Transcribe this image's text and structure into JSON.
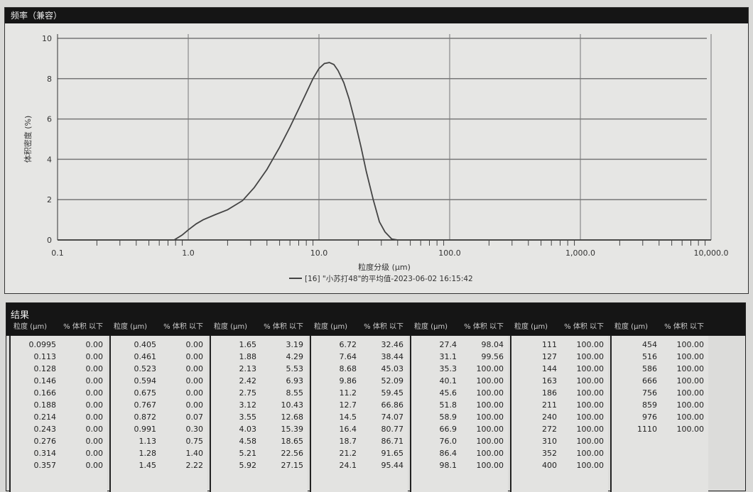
{
  "chart_panel": {
    "title": "频率（兼容）"
  },
  "chart_data": {
    "type": "line",
    "title": "频率（兼容）",
    "xlabel": "粒度分级 (μm)",
    "ylabel": "体积密度 (%)",
    "xscale": "log",
    "xlim": [
      0.1,
      10000
    ],
    "ylim": [
      0,
      10
    ],
    "xticks": [
      "0.1",
      "1.0",
      "10.0",
      "100.0",
      "1,000.0",
      "10,000.0"
    ],
    "yticks": [
      "0",
      "2",
      "4",
      "6",
      "8",
      "10"
    ],
    "grid": true,
    "legend": "bottom",
    "series": [
      {
        "name": "[16] \"小苏打48\"的平均值-2023-06-02 16:15:42",
        "x": [
          0.1,
          0.78,
          0.9,
          1.0,
          1.15,
          1.3,
          1.6,
          2.0,
          2.6,
          3.2,
          4.0,
          5.0,
          6.0,
          7.0,
          8.0,
          9.0,
          10.0,
          11.0,
          12.0,
          13.0,
          14.0,
          15.5,
          17.0,
          19.0,
          21.0,
          23.0,
          26.0,
          29.0,
          32.0,
          36.0,
          40.0,
          10000
        ],
        "y": [
          0,
          0,
          0.25,
          0.5,
          0.8,
          1.0,
          1.25,
          1.5,
          1.95,
          2.6,
          3.5,
          4.6,
          5.6,
          6.5,
          7.3,
          8.0,
          8.5,
          8.75,
          8.8,
          8.7,
          8.4,
          7.8,
          7.0,
          5.8,
          4.6,
          3.4,
          2.0,
          0.9,
          0.4,
          0.05,
          0,
          0
        ]
      }
    ]
  },
  "results": {
    "title": "结果",
    "col_size": "粒度 (μm)",
    "col_pct": "% 体积 以下",
    "groups": [
      [
        [
          "0.0995",
          "0.00"
        ],
        [
          "0.113",
          "0.00"
        ],
        [
          "0.128",
          "0.00"
        ],
        [
          "0.146",
          "0.00"
        ],
        [
          "0.166",
          "0.00"
        ],
        [
          "0.188",
          "0.00"
        ],
        [
          "0.214",
          "0.00"
        ],
        [
          "0.243",
          "0.00"
        ],
        [
          "0.276",
          "0.00"
        ],
        [
          "0.314",
          "0.00"
        ],
        [
          "0.357",
          "0.00"
        ]
      ],
      [
        [
          "0.405",
          "0.00"
        ],
        [
          "0.461",
          "0.00"
        ],
        [
          "0.523",
          "0.00"
        ],
        [
          "0.594",
          "0.00"
        ],
        [
          "0.675",
          "0.00"
        ],
        [
          "0.767",
          "0.00"
        ],
        [
          "0.872",
          "0.07"
        ],
        [
          "0.991",
          "0.30"
        ],
        [
          "1.13",
          "0.75"
        ],
        [
          "1.28",
          "1.40"
        ],
        [
          "1.45",
          "2.22"
        ]
      ],
      [
        [
          "1.65",
          "3.19"
        ],
        [
          "1.88",
          "4.29"
        ],
        [
          "2.13",
          "5.53"
        ],
        [
          "2.42",
          "6.93"
        ],
        [
          "2.75",
          "8.55"
        ],
        [
          "3.12",
          "10.43"
        ],
        [
          "3.55",
          "12.68"
        ],
        [
          "4.03",
          "15.39"
        ],
        [
          "4.58",
          "18.65"
        ],
        [
          "5.21",
          "22.56"
        ],
        [
          "5.92",
          "27.15"
        ]
      ],
      [
        [
          "6.72",
          "32.46"
        ],
        [
          "7.64",
          "38.44"
        ],
        [
          "8.68",
          "45.03"
        ],
        [
          "9.86",
          "52.09"
        ],
        [
          "11.2",
          "59.45"
        ],
        [
          "12.7",
          "66.86"
        ],
        [
          "14.5",
          "74.07"
        ],
        [
          "16.4",
          "80.77"
        ],
        [
          "18.7",
          "86.71"
        ],
        [
          "21.2",
          "91.65"
        ],
        [
          "24.1",
          "95.44"
        ]
      ],
      [
        [
          "27.4",
          "98.04"
        ],
        [
          "31.1",
          "99.56"
        ],
        [
          "35.3",
          "100.00"
        ],
        [
          "40.1",
          "100.00"
        ],
        [
          "45.6",
          "100.00"
        ],
        [
          "51.8",
          "100.00"
        ],
        [
          "58.9",
          "100.00"
        ],
        [
          "66.9",
          "100.00"
        ],
        [
          "76.0",
          "100.00"
        ],
        [
          "86.4",
          "100.00"
        ],
        [
          "98.1",
          "100.00"
        ]
      ],
      [
        [
          "111",
          "100.00"
        ],
        [
          "127",
          "100.00"
        ],
        [
          "144",
          "100.00"
        ],
        [
          "163",
          "100.00"
        ],
        [
          "186",
          "100.00"
        ],
        [
          "211",
          "100.00"
        ],
        [
          "240",
          "100.00"
        ],
        [
          "272",
          "100.00"
        ],
        [
          "310",
          "100.00"
        ],
        [
          "352",
          "100.00"
        ],
        [
          "400",
          "100.00"
        ]
      ],
      [
        [
          "454",
          "100.00"
        ],
        [
          "516",
          "100.00"
        ],
        [
          "586",
          "100.00"
        ],
        [
          "666",
          "100.00"
        ],
        [
          "756",
          "100.00"
        ],
        [
          "859",
          "100.00"
        ],
        [
          "976",
          "100.00"
        ],
        [
          "1110",
          "100.00"
        ]
      ]
    ]
  }
}
